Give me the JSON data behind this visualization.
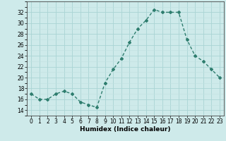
{
  "x": [
    0,
    1,
    2,
    3,
    4,
    5,
    6,
    7,
    8,
    9,
    10,
    11,
    12,
    13,
    14,
    15,
    16,
    17,
    18,
    19,
    20,
    21,
    22,
    23
  ],
  "y": [
    17,
    16,
    16,
    17,
    17.5,
    17,
    15.5,
    15,
    14.5,
    19,
    21.5,
    23.5,
    26.5,
    29,
    30.5,
    32.5,
    32,
    32,
    32,
    27,
    24,
    23,
    21.5,
    20
  ],
  "line_color": "#2e7d6e",
  "marker": "D",
  "marker_size": 2.0,
  "bg_color": "#ceeaea",
  "grid_major_color": "#aad4d4",
  "grid_minor_color": "#c0e0e0",
  "xlabel": "Humidex (Indice chaleur)",
  "ylim": [
    13,
    34
  ],
  "xlim": [
    -0.5,
    23.5
  ],
  "yticks": [
    14,
    16,
    18,
    20,
    22,
    24,
    26,
    28,
    30,
    32
  ],
  "xticks": [
    0,
    1,
    2,
    3,
    4,
    5,
    6,
    7,
    8,
    9,
    10,
    11,
    12,
    13,
    14,
    15,
    16,
    17,
    18,
    19,
    20,
    21,
    22,
    23
  ],
  "xlabel_fontsize": 6.5,
  "tick_fontsize": 5.5,
  "linewidth": 1.0
}
